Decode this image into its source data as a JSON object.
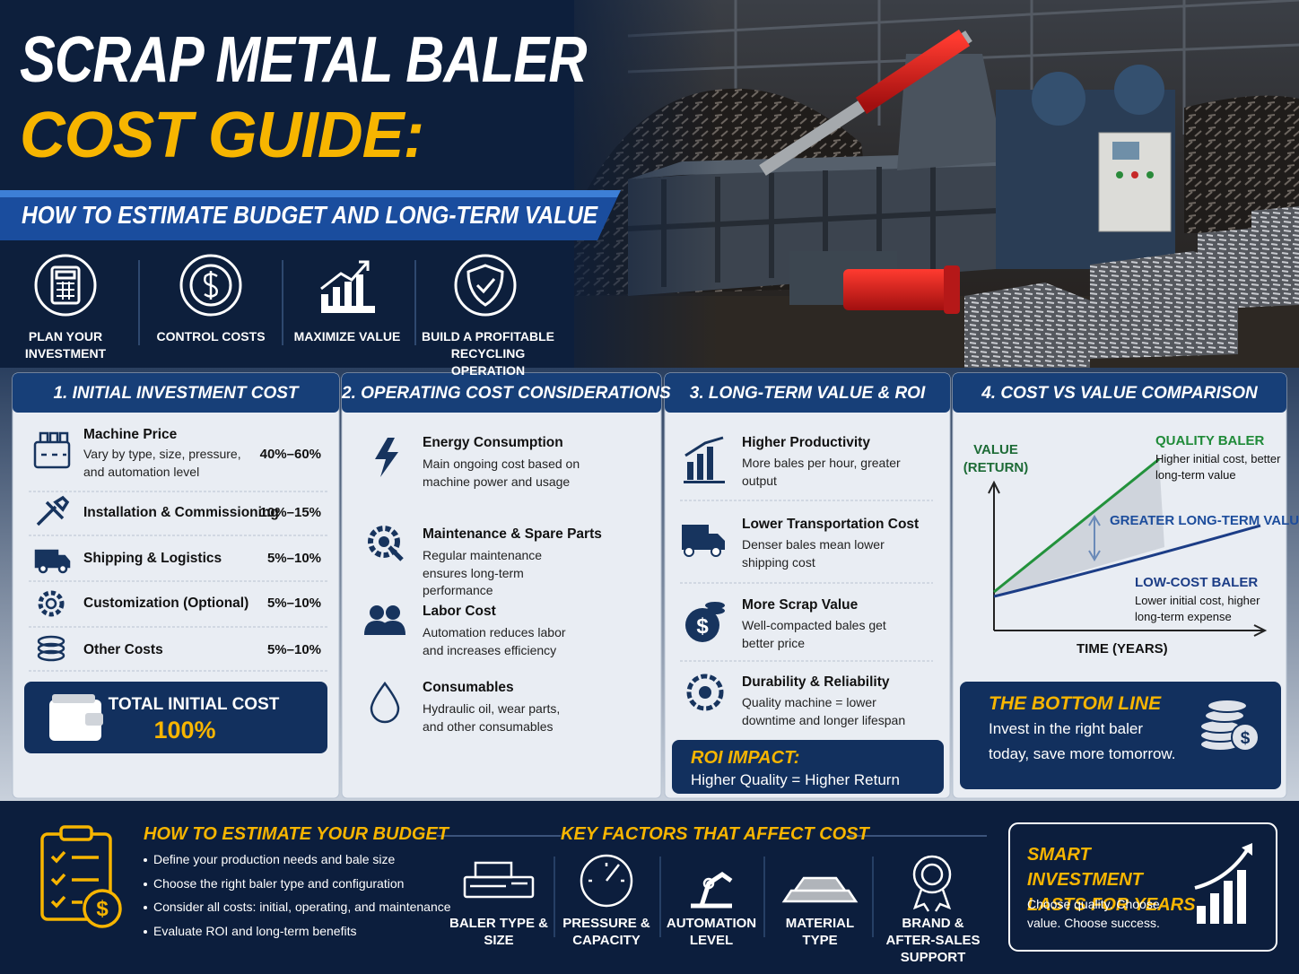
{
  "header": {
    "title_line1": "SCRAP METAL BALER",
    "title_line2": "COST GUIDE:",
    "subtitle": "HOW TO ESTIMATE BUDGET AND LONG-TERM VALUE"
  },
  "benefits": [
    "PLAN YOUR INVESTMENT",
    "CONTROL COSTS",
    "MAXIMIZE VALUE",
    "BUILD A PROFITABLE RECYCLING OPERATION"
  ],
  "sections": [
    {
      "title": "1. INITIAL INVESTMENT COST",
      "items": [
        {
          "name": "Machine Price",
          "description": "Vary by type, size, pressure, and automation level",
          "share": "40%–60%"
        },
        {
          "name": "Installation & Commissioning",
          "share": "10%–15%"
        },
        {
          "name": "Shipping & Logistics",
          "share": "5%–10%"
        },
        {
          "name": "Customization (Optional)",
          "share": "5%–10%"
        },
        {
          "name": "Other Costs",
          "share": "5%–10%"
        }
      ],
      "total": {
        "label": "TOTAL INITIAL COST",
        "value": "100%"
      }
    },
    {
      "title": "2. OPERATING COST CONSIDERATIONS",
      "items": [
        {
          "name": "Energy Consumption",
          "description": "Main ongoing cost based on machine power and usage"
        },
        {
          "name": "Maintenance & Spare Parts",
          "description": "Regular maintenance ensures long-term performance"
        },
        {
          "name": "Labor Cost",
          "description": "Automation reduces labor and increases efficiency"
        },
        {
          "name": "Consumables",
          "description": "Hydraulic oil, wear parts, and other consumables"
        }
      ]
    },
    {
      "title": "3. LONG-TERM VALUE & ROI",
      "items": [
        {
          "name": "Higher Productivity",
          "description": "More bales per hour, greater output"
        },
        {
          "name": "Lower Transportation Cost",
          "description": "Denser bales mean lower shipping cost"
        },
        {
          "name": "More Scrap Value",
          "description": "Well-compacted bales get better price"
        },
        {
          "name": "Durability & Reliability",
          "description": "Quality machine = lower downtime and longer lifespan"
        }
      ],
      "roi": {
        "title": "ROI IMPACT:",
        "text": "Higher Quality = Higher Return"
      }
    },
    {
      "title": "4. COST VS VALUE COMPARISON",
      "chart": {
        "y_label": "VALUE (RETURN)",
        "x_label": "TIME (YEARS)",
        "high": {
          "name": "QUALITY BALER",
          "note": "Higher initial cost, better long-term value"
        },
        "low": {
          "name": "LOW-COST BALER",
          "note": "Lower initial cost, higher long-term expense"
        },
        "gap": "GREATER LONG-TERM VALUE"
      },
      "bottom_line": {
        "title": "THE BOTTOM LINE",
        "text": "Invest in the right baler today, save more tomorrow."
      }
    }
  ],
  "footer": {
    "budget": {
      "title": "HOW TO ESTIMATE YOUR BUDGET",
      "steps": [
        "Define your production needs and bale size",
        "Choose the right baler type and configuration",
        "Consider all costs: initial, operating, and maintenance",
        "Evaluate ROI and long-term benefits"
      ]
    },
    "factors": {
      "title": "KEY FACTORS THAT AFFECT COST",
      "items": [
        "BALER TYPE & SIZE",
        "PRESSURE & CAPACITY",
        "AUTOMATION LEVEL",
        "MATERIAL TYPE",
        "BRAND & AFTER-SALES SUPPORT"
      ]
    },
    "smart": {
      "title": "SMART INVESTMENT LASTS FOR YEARS",
      "text": "Choose quality. Choose value. Choose success."
    }
  }
}
